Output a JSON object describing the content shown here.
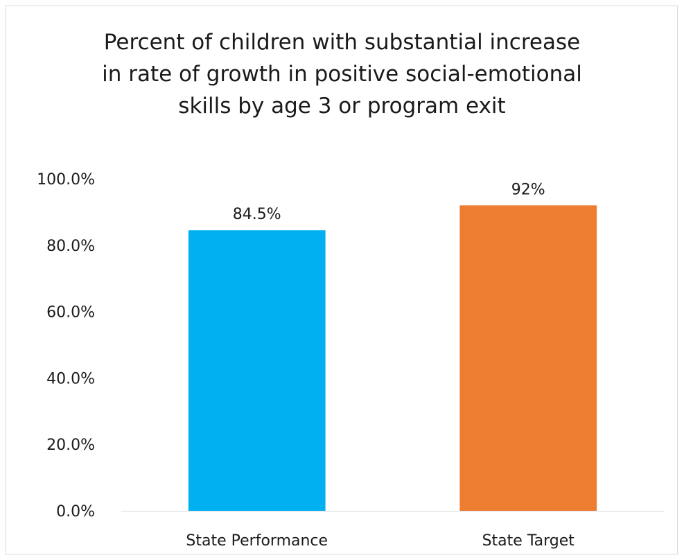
{
  "chart_data": {
    "type": "bar",
    "title_lines": [
      "Percent of children with substantial increase",
      "in rate of growth in positive social-emotional",
      "skills by age 3 or program exit"
    ],
    "categories": [
      "State Performance",
      "State Target"
    ],
    "values": [
      84.5,
      92
    ],
    "data_labels": [
      "84.5%",
      "92%"
    ],
    "bar_colors": [
      "#00b0f0",
      "#ed7d31"
    ],
    "yticks": [
      0,
      20,
      40,
      60,
      80,
      100
    ],
    "ytick_labels": [
      "0.0%",
      "20.0%",
      "40.0%",
      "60.0%",
      "80.0%",
      "100.0%"
    ],
    "ylim": [
      0,
      100
    ],
    "grid": false,
    "legend": "none"
  }
}
